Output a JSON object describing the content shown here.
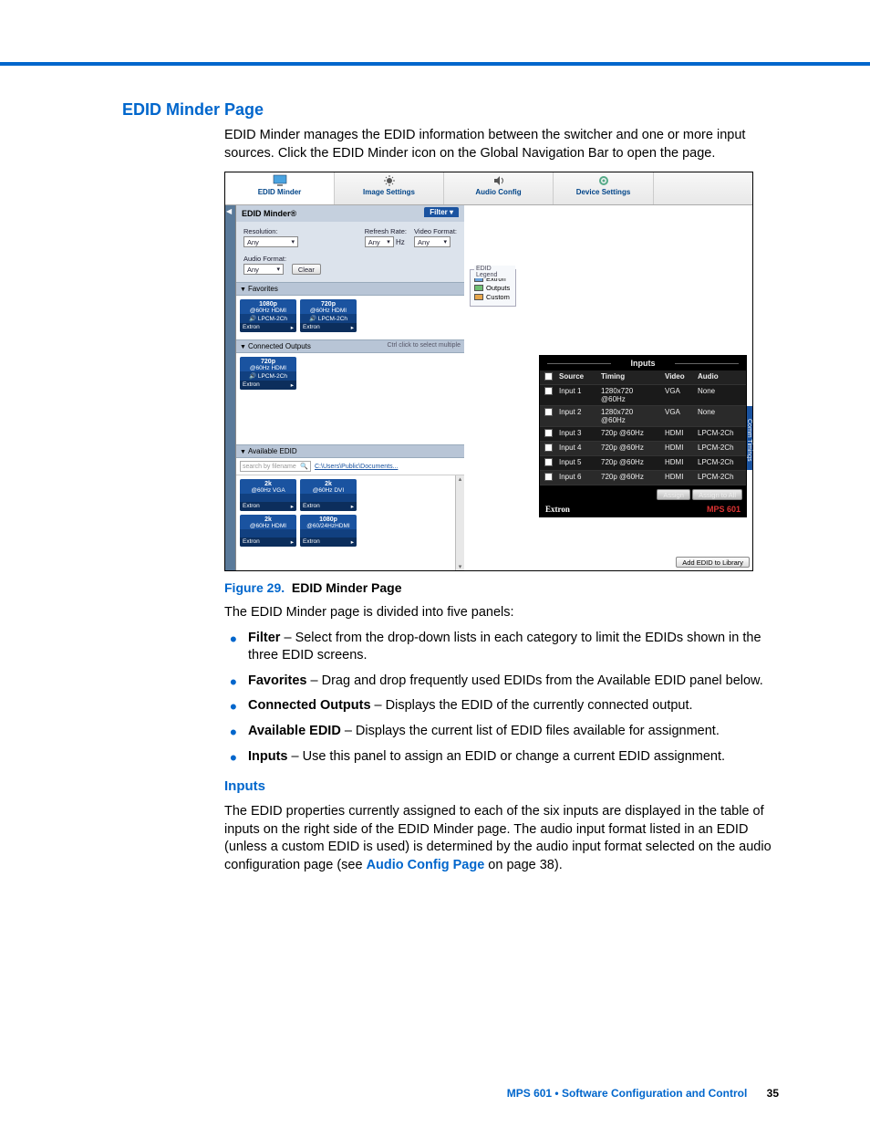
{
  "page": {
    "title": "EDID Minder Page",
    "intro": "EDID Minder manages the EDID information between the switcher and one or more input sources. Click the EDID Minder icon on the Global Navigation Bar to open the page.",
    "figure_number": "Figure 29.",
    "figure_title": "EDID Minder Page",
    "panels_intro": "The EDID Minder page is divided into five panels:",
    "bullets": [
      {
        "b": "Filter",
        "t": " – Select from the drop-down lists in each category to limit the EDIDs shown in the three EDID screens."
      },
      {
        "b": "Favorites",
        "t": " – Drag and drop frequently used EDIDs from the Available EDID panel below."
      },
      {
        "b": "Connected Outputs",
        "t": " – Displays the EDID of the currently connected output."
      },
      {
        "b": "Available EDID",
        "t": " – Displays the current list of EDID files available for assignment."
      },
      {
        "b": "Inputs",
        "t": " – Use this panel to assign an EDID or change a current EDID assignment."
      }
    ],
    "inputs_heading": "Inputs",
    "inputs_para_a": "The EDID properties currently assigned to each of the six inputs are displayed in the table of inputs on the right side of the EDID Minder page. The audio input format listed in an EDID (unless a custom EDID is used) is determined by the audio input format selected on the audio configuration page (see ",
    "inputs_link": "Audio Config Page",
    "inputs_para_b": " on page 38)."
  },
  "nav": {
    "tabs": [
      "EDID Minder",
      "Image Settings",
      "Audio Config",
      "Device Settings"
    ]
  },
  "panel": {
    "title": "EDID Minder®",
    "filter_tab": "Filter ▾",
    "filters": {
      "resolution": "Resolution:",
      "refresh": "Refresh Rate:",
      "vformat": "Video Format:",
      "aformat": "Audio Format:",
      "hz": "Hz",
      "any": "Any",
      "clear": "Clear"
    },
    "favorites": "Favorites",
    "connected": "Connected Outputs",
    "connected_hint": "Ctrl click to select multiple",
    "available": "Available EDID",
    "search_ph": "search by filename",
    "path": "C:\\Users\\Public\\Documents...",
    "add_btn": "Add EDID to Library",
    "comm": "Comm Timings"
  },
  "tiles": {
    "fav": [
      {
        "l1": "1080p",
        "l2": "@60Hz HDMI",
        "l3": "LPCM-2Ch",
        "foot": "Extron"
      },
      {
        "l1": "720p",
        "l2": "@60Hz HDMI",
        "l3": "LPCM-2Ch",
        "foot": "Extron"
      }
    ],
    "conn": [
      {
        "l1": "720p",
        "l2": "@60Hz HDMI",
        "l3": "LPCM-2Ch",
        "foot": "Extron"
      }
    ],
    "avail": [
      {
        "l1": "2k",
        "l2": "@60Hz VGA",
        "l3": "",
        "foot": "Extron"
      },
      {
        "l1": "2k",
        "l2": "@60Hz DVI",
        "l3": "",
        "foot": "Extron"
      },
      {
        "l1": "2k",
        "l2": "@60Hz HDMI",
        "l3": "",
        "foot": "Extron"
      },
      {
        "l1": "1080p",
        "l2": "@60/24HzHDMI",
        "l3": "",
        "foot": "Extron"
      }
    ]
  },
  "legend": {
    "title": "EDID Legend",
    "rows": [
      {
        "color": "#6aa0d8",
        "label": "Extron"
      },
      {
        "color": "#6fbf73",
        "label": "Outputs"
      },
      {
        "color": "#e6a64d",
        "label": "Custom"
      }
    ]
  },
  "inputs_panel": {
    "title": "Inputs",
    "cols": [
      "Source",
      "Timing",
      "Video",
      "Audio"
    ],
    "rows": [
      {
        "src": "Input 1",
        "tim": "1280x720 @60Hz",
        "vid": "VGA",
        "aud": "None"
      },
      {
        "src": "Input 2",
        "tim": "1280x720 @60Hz",
        "vid": "VGA",
        "aud": "None"
      },
      {
        "src": "Input 3",
        "tim": "720p @60Hz",
        "vid": "HDMI",
        "aud": "LPCM-2Ch"
      },
      {
        "src": "Input 4",
        "tim": "720p @60Hz",
        "vid": "HDMI",
        "aud": "LPCM-2Ch"
      },
      {
        "src": "Input 5",
        "tim": "720p @60Hz",
        "vid": "HDMI",
        "aud": "LPCM-2Ch"
      },
      {
        "src": "Input 6",
        "tim": "720p @60Hz",
        "vid": "HDMI",
        "aud": "LPCM-2Ch"
      }
    ],
    "assign": "Assign",
    "assign_all": "Assign to All",
    "extron": "Extron",
    "model": "MPS 601"
  },
  "footer": {
    "a": "MPS 601 • Software Configuration and Control",
    "b": "35"
  },
  "colors": {
    "accent": "#0066cc",
    "tile_bg": "#1a53a0"
  }
}
